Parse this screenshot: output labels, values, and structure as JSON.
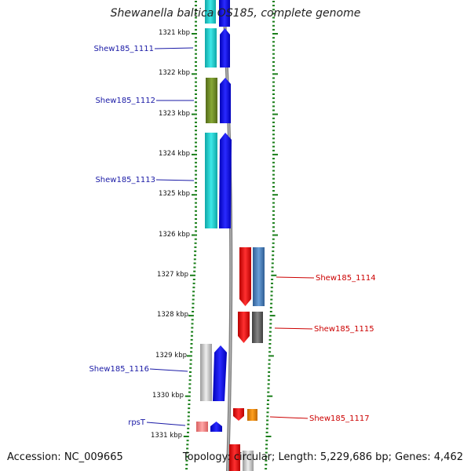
{
  "title": "Shewanella baltica OS185, complete genome",
  "footer": {
    "accession": "Accession: NC_009665",
    "summary": "Topology: circular; Length: 5,229,686 bp; Genes: 4,462"
  },
  "colors": {
    "ticks": "#1a7f1a",
    "backbone": "#888888",
    "left_label": "#1a1aa6",
    "right_label": "#cc0000",
    "cyan": "#19c8c8",
    "blue": "#0a0af0",
    "olive": "#6b8e23",
    "red": "#ee1111",
    "steel": "#4a7ebb",
    "gray": "#666666",
    "lightgray": "#c8c8c8",
    "orange": "#f08a00",
    "pink": "#f08080"
  },
  "ruler": {
    "labels": [
      "1321 kbp",
      "1322 kbp",
      "1323 kbp",
      "1324 kbp",
      "1325 kbp",
      "1326 kbp",
      "1327 kbp",
      "1328 kbp",
      "1329 kbp",
      "1330 kbp",
      "1331 kbp"
    ]
  },
  "genes": [
    {
      "label": "Shew185_1111",
      "side": "left"
    },
    {
      "label": "Shew185_1112",
      "side": "left"
    },
    {
      "label": "Shew185_1113",
      "side": "left"
    },
    {
      "label": "Shew185_1114",
      "side": "right"
    },
    {
      "label": "Shew185_1115",
      "side": "right"
    },
    {
      "label": "Shew185_1116",
      "side": "left"
    },
    {
      "label": "Shew185_1117",
      "side": "right"
    },
    {
      "label": "rpsT",
      "side": "left"
    }
  ]
}
